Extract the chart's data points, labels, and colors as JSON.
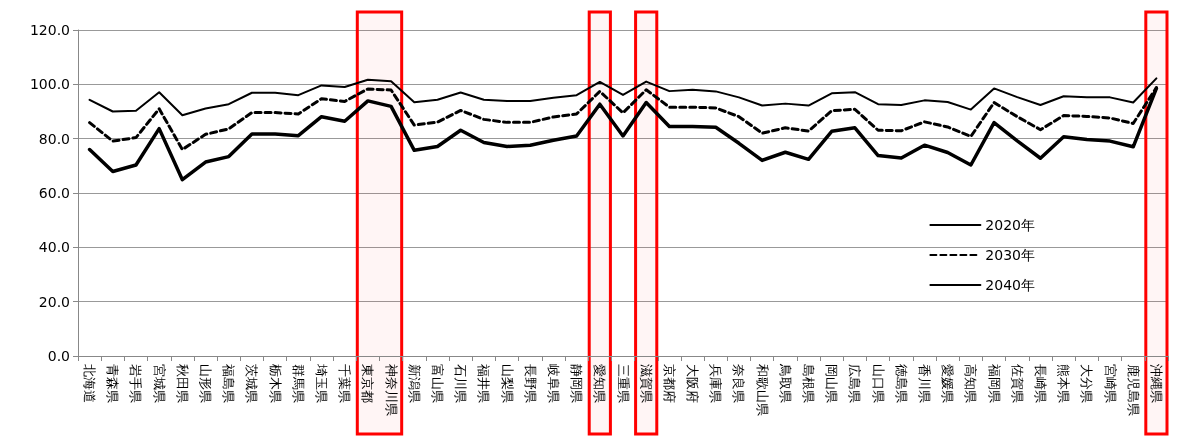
{
  "chart_data": {
    "type": "line",
    "categories": [
      "北海道",
      "青森県",
      "岩手県",
      "宮城県",
      "秋田県",
      "山形県",
      "福島県",
      "茨城県",
      "栃木県",
      "群馬県",
      "埼玉県",
      "千葉県",
      "東京都",
      "神奈川県",
      "新潟県",
      "富山県",
      "石川県",
      "福井県",
      "山梨県",
      "長野県",
      "岐阜県",
      "静岡県",
      "愛知県",
      "三重県",
      "滋賀県",
      "京都府",
      "大阪府",
      "兵庫県",
      "奈良県",
      "和歌山県",
      "鳥取県",
      "島根県",
      "岡山県",
      "広島県",
      "山口県",
      "徳島県",
      "香川県",
      "愛媛県",
      "高知県",
      "福岡県",
      "佐賀県",
      "長崎県",
      "熊本県",
      "大分県",
      "宮崎県",
      "鹿児島県",
      "沖縄県"
    ],
    "series": [
      {
        "name": "2020年",
        "color": "#000000",
        "line_style": "solid",
        "values": [
          94.3,
          90.0,
          90.3,
          97.1,
          88.6,
          91.1,
          92.7,
          96.9,
          96.9,
          96.0,
          99.6,
          99.0,
          101.7,
          101.1,
          93.4,
          94.3,
          97.0,
          94.3,
          93.9,
          93.9,
          95.1,
          96.0,
          100.9,
          96.1,
          101.0,
          97.5,
          98.0,
          97.4,
          95.2,
          92.2,
          92.9,
          92.2,
          96.7,
          97.1,
          92.7,
          92.4,
          94.1,
          93.5,
          90.7,
          98.5,
          95.3,
          92.4,
          95.6,
          95.2,
          95.2,
          93.3,
          102.2
        ]
      },
      {
        "name": "2030年",
        "color": "#000000",
        "line_style": "dashed",
        "values": [
          85.9,
          79.1,
          80.4,
          91.0,
          76.0,
          81.6,
          83.6,
          89.6,
          89.6,
          89.1,
          94.7,
          93.7,
          98.3,
          97.9,
          85.0,
          86.1,
          90.4,
          87.1,
          86.0,
          86.0,
          88.0,
          89.1,
          97.4,
          89.5,
          98.0,
          91.6,
          91.6,
          91.3,
          88.1,
          82.0,
          84.0,
          82.8,
          90.3,
          90.8,
          83.1,
          82.9,
          86.2,
          84.3,
          80.8,
          93.3,
          88.1,
          83.3,
          88.5,
          88.2,
          87.6,
          85.6,
          98.8
        ]
      },
      {
        "name": "2040年",
        "color": "#000000",
        "line_style": "solid",
        "values": [
          76.0,
          67.9,
          70.3,
          83.7,
          64.9,
          71.4,
          73.4,
          81.7,
          81.7,
          81.1,
          88.1,
          86.4,
          93.9,
          91.9,
          75.7,
          77.1,
          83.1,
          78.6,
          77.1,
          77.6,
          79.4,
          81.0,
          92.7,
          81.0,
          93.3,
          84.5,
          84.5,
          84.2,
          78.3,
          72.0,
          75.0,
          72.4,
          82.7,
          84.0,
          73.8,
          72.9,
          77.6,
          74.9,
          70.3,
          85.9,
          79.2,
          72.8,
          80.7,
          79.7,
          79.1,
          77.0,
          98.5
        ]
      }
    ],
    "ylim": [
      0,
      120
    ],
    "yticks": [
      {
        "value": 0,
        "label": "0.0"
      },
      {
        "value": 20,
        "label": "20.0"
      },
      {
        "value": 40,
        "label": "40.0"
      },
      {
        "value": 60,
        "label": "60.0"
      },
      {
        "value": 80,
        "label": "80.0"
      },
      {
        "value": 100,
        "label": "100.0"
      },
      {
        "value": 120,
        "label": "120.0"
      }
    ],
    "grid": "y",
    "legend": "right",
    "marker": "none",
    "bands": [
      {
        "axis": "x",
        "from": "東京都",
        "to": "神奈川県",
        "color": "#ff0000"
      },
      {
        "axis": "x",
        "from": "愛知県",
        "to": "愛知県",
        "color": "#ff0000"
      },
      {
        "axis": "x",
        "from": "滋賀県",
        "to": "滋賀県",
        "color": "#ff0000"
      },
      {
        "axis": "x",
        "from": "沖縄県",
        "to": "沖縄県",
        "color": "#ff0000"
      }
    ]
  }
}
